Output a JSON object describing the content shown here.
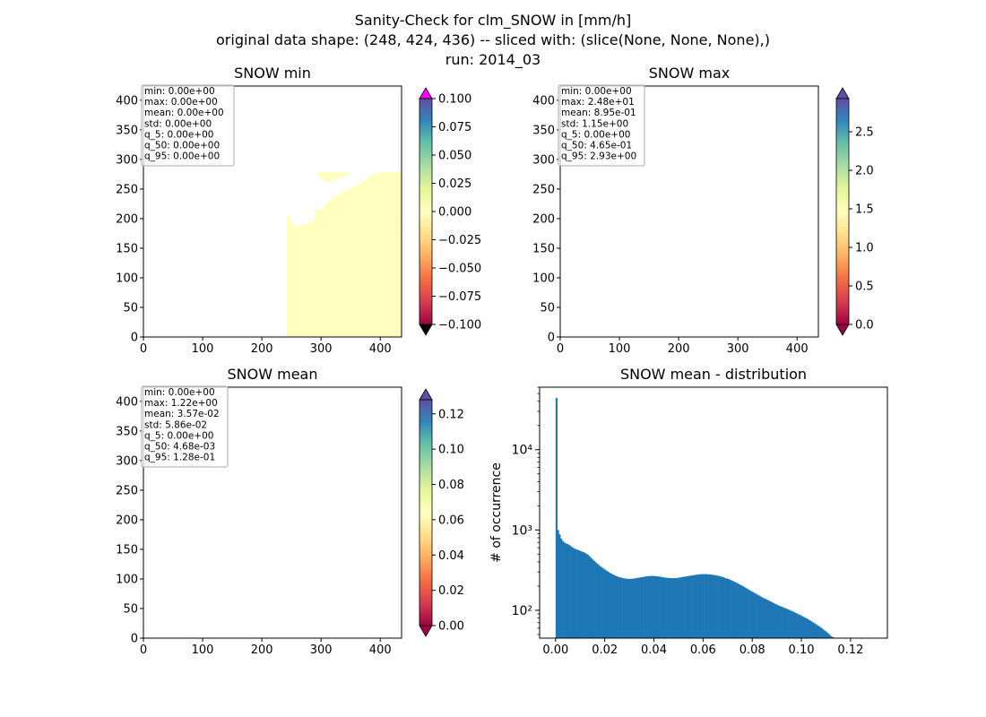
{
  "figure": {
    "title_lines": [
      "Sanity-Check for clm_SNOW in [mm/h]",
      "original data shape: (248, 424, 436) -- sliced with: (slice(None, None, None),)",
      "run: 2014_03"
    ]
  },
  "chart_data": [
    {
      "type": "heatmap",
      "title": "SNOW min",
      "x_ticks": [
        0,
        100,
        200,
        300,
        400
      ],
      "y_ticks": [
        0,
        50,
        100,
        150,
        200,
        250,
        300,
        350,
        400
      ],
      "xlim": [
        0,
        436
      ],
      "ylim": [
        0,
        424
      ],
      "colorbar": {
        "colormap": "Spectral",
        "range": [
          -0.1,
          0.1
        ],
        "extend": "both",
        "under_color": "#000000",
        "over_color": "#ff00ff",
        "ticks": [
          "0.100",
          "0.075",
          "0.050",
          "0.025",
          "0.000",
          "−0.025",
          "−0.050",
          "−0.075",
          "−0.100"
        ]
      },
      "stats": [
        "min: 0.00e+00",
        "max: 0.00e+00",
        "mean: 0.00e+00",
        "std: 0.00e+00",
        "q_5: 0.00e+00",
        "q_50: 0.00e+00",
        "q_95: 0.00e+00"
      ]
    },
    {
      "type": "heatmap",
      "title": "SNOW max",
      "x_ticks": [
        0,
        100,
        200,
        300,
        400
      ],
      "y_ticks": [
        0,
        50,
        100,
        150,
        200,
        250,
        300,
        350,
        400
      ],
      "xlim": [
        0,
        436
      ],
      "ylim": [
        0,
        424
      ],
      "colorbar": {
        "colormap": "Spectral",
        "range": [
          0,
          2.93
        ],
        "extend": "both",
        "ticks": [
          "2.5",
          "2.0",
          "1.5",
          "1.0",
          "0.5",
          "0.0"
        ]
      },
      "stats": [
        "min: 0.00e+00",
        "max: 2.48e+01",
        "mean: 8.95e-01",
        "std: 1.15e+00",
        "q_5: 0.00e+00",
        "q_50: 4.65e-01",
        "q_95: 2.93e+00"
      ]
    },
    {
      "type": "heatmap",
      "title": "SNOW mean",
      "x_ticks": [
        0,
        100,
        200,
        300,
        400
      ],
      "y_ticks": [
        0,
        50,
        100,
        150,
        200,
        250,
        300,
        350,
        400
      ],
      "xlim": [
        0,
        436
      ],
      "ylim": [
        0,
        424
      ],
      "colorbar": {
        "colormap": "Spectral",
        "range": [
          0,
          0.128
        ],
        "extend": "both",
        "ticks": [
          "0.12",
          "0.10",
          "0.08",
          "0.06",
          "0.04",
          "0.02",
          "0.00"
        ]
      },
      "stats": [
        "min: 0.00e+00",
        "max: 1.22e+00",
        "mean: 3.57e-02",
        "std: 5.86e-02",
        "q_5: 0.00e+00",
        "q_50: 4.68e-03",
        "q_95: 1.28e-01"
      ]
    },
    {
      "type": "bar",
      "title": "SNOW mean - distribution",
      "xlabel": "",
      "ylabel": "# of occurrence",
      "yscale": "log",
      "xlim": [
        -0.0065,
        0.135
      ],
      "ylim": [
        45,
        60000
      ],
      "x_ticks": [
        "0.00",
        "0.02",
        "0.04",
        "0.06",
        "0.08",
        "0.10",
        "0.12"
      ],
      "y_ticks": [
        "10²",
        "10³",
        "10⁴"
      ],
      "bar_color": "#1f77b4",
      "bins": {
        "start": 0.0,
        "width": 0.00064
      },
      "values": [
        44000,
        1000,
        880,
        780,
        730,
        700,
        680,
        670,
        650,
        630,
        610,
        595,
        580,
        570,
        560,
        550,
        540,
        530,
        520,
        505,
        490,
        470,
        450,
        430,
        410,
        395,
        380,
        365,
        350,
        340,
        330,
        320,
        310,
        300,
        292,
        285,
        278,
        272,
        266,
        262,
        258,
        255,
        252,
        250,
        248,
        247,
        246,
        246,
        247,
        248,
        250,
        252,
        254,
        256,
        258,
        260,
        262,
        264,
        266,
        267,
        268,
        268,
        267,
        266,
        265,
        263,
        261,
        259,
        257,
        256,
        254,
        253,
        252,
        251,
        251,
        251,
        252,
        253,
        255,
        257,
        259,
        261,
        263,
        265,
        267,
        269,
        271,
        273,
        275,
        277,
        279,
        280,
        281,
        282,
        282,
        282,
        281,
        280,
        279,
        277,
        275,
        273,
        271,
        268,
        265,
        262,
        258,
        254,
        250,
        246,
        242,
        237,
        232,
        227,
        222,
        217,
        212,
        207,
        202,
        197,
        192,
        187,
        182,
        177,
        172,
        168,
        164,
        160,
        156,
        152,
        148,
        144,
        141,
        138,
        135,
        132,
        129,
        126,
        123,
        120,
        118,
        115,
        113,
        111,
        109,
        107,
        105,
        103,
        101,
        99,
        97,
        95,
        93,
        91,
        89,
        87,
        85,
        83,
        81,
        79,
        77,
        75,
        73,
        71,
        69,
        67,
        65,
        63,
        61,
        59,
        57,
        55,
        53,
        51,
        49,
        47,
        46,
        45,
        44,
        43,
        42,
        41,
        40,
        39,
        38,
        37,
        36,
        35,
        34,
        33,
        32,
        31,
        30,
        29,
        28,
        27,
        26,
        25,
        24,
        23,
        22,
        21,
        20,
        19,
        18,
        17,
        16,
        15,
        14,
        13
      ]
    }
  ]
}
